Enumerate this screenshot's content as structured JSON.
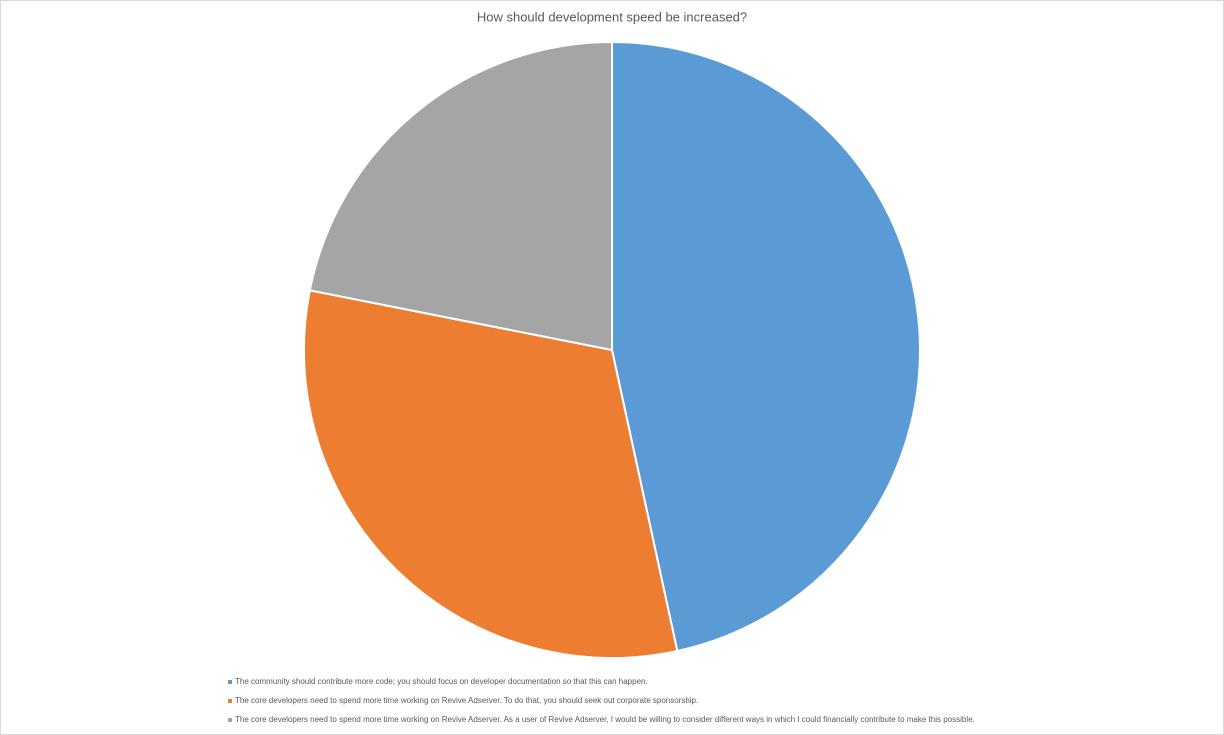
{
  "chart_data": {
    "type": "pie",
    "title": "How should development speed be increased?",
    "categories": [
      "The community should contribute more code; you should focus on developer documentation so that this can happen.",
      "The core developers need to spend more time working on Revive Adserver. To do that, you should seek out corporate sponsorship.",
      "The core developers need to spend more time working on Revive Adserver. As a user of Revive Adserver, I would be willing to consider different ways in which I could financially contribute to make this possible."
    ],
    "values": [
      46.6,
      31.5,
      21.9
    ],
    "colors": [
      "#5b9bd5",
      "#ed7d31",
      "#a5a5a5"
    ],
    "legend": "bottom"
  }
}
